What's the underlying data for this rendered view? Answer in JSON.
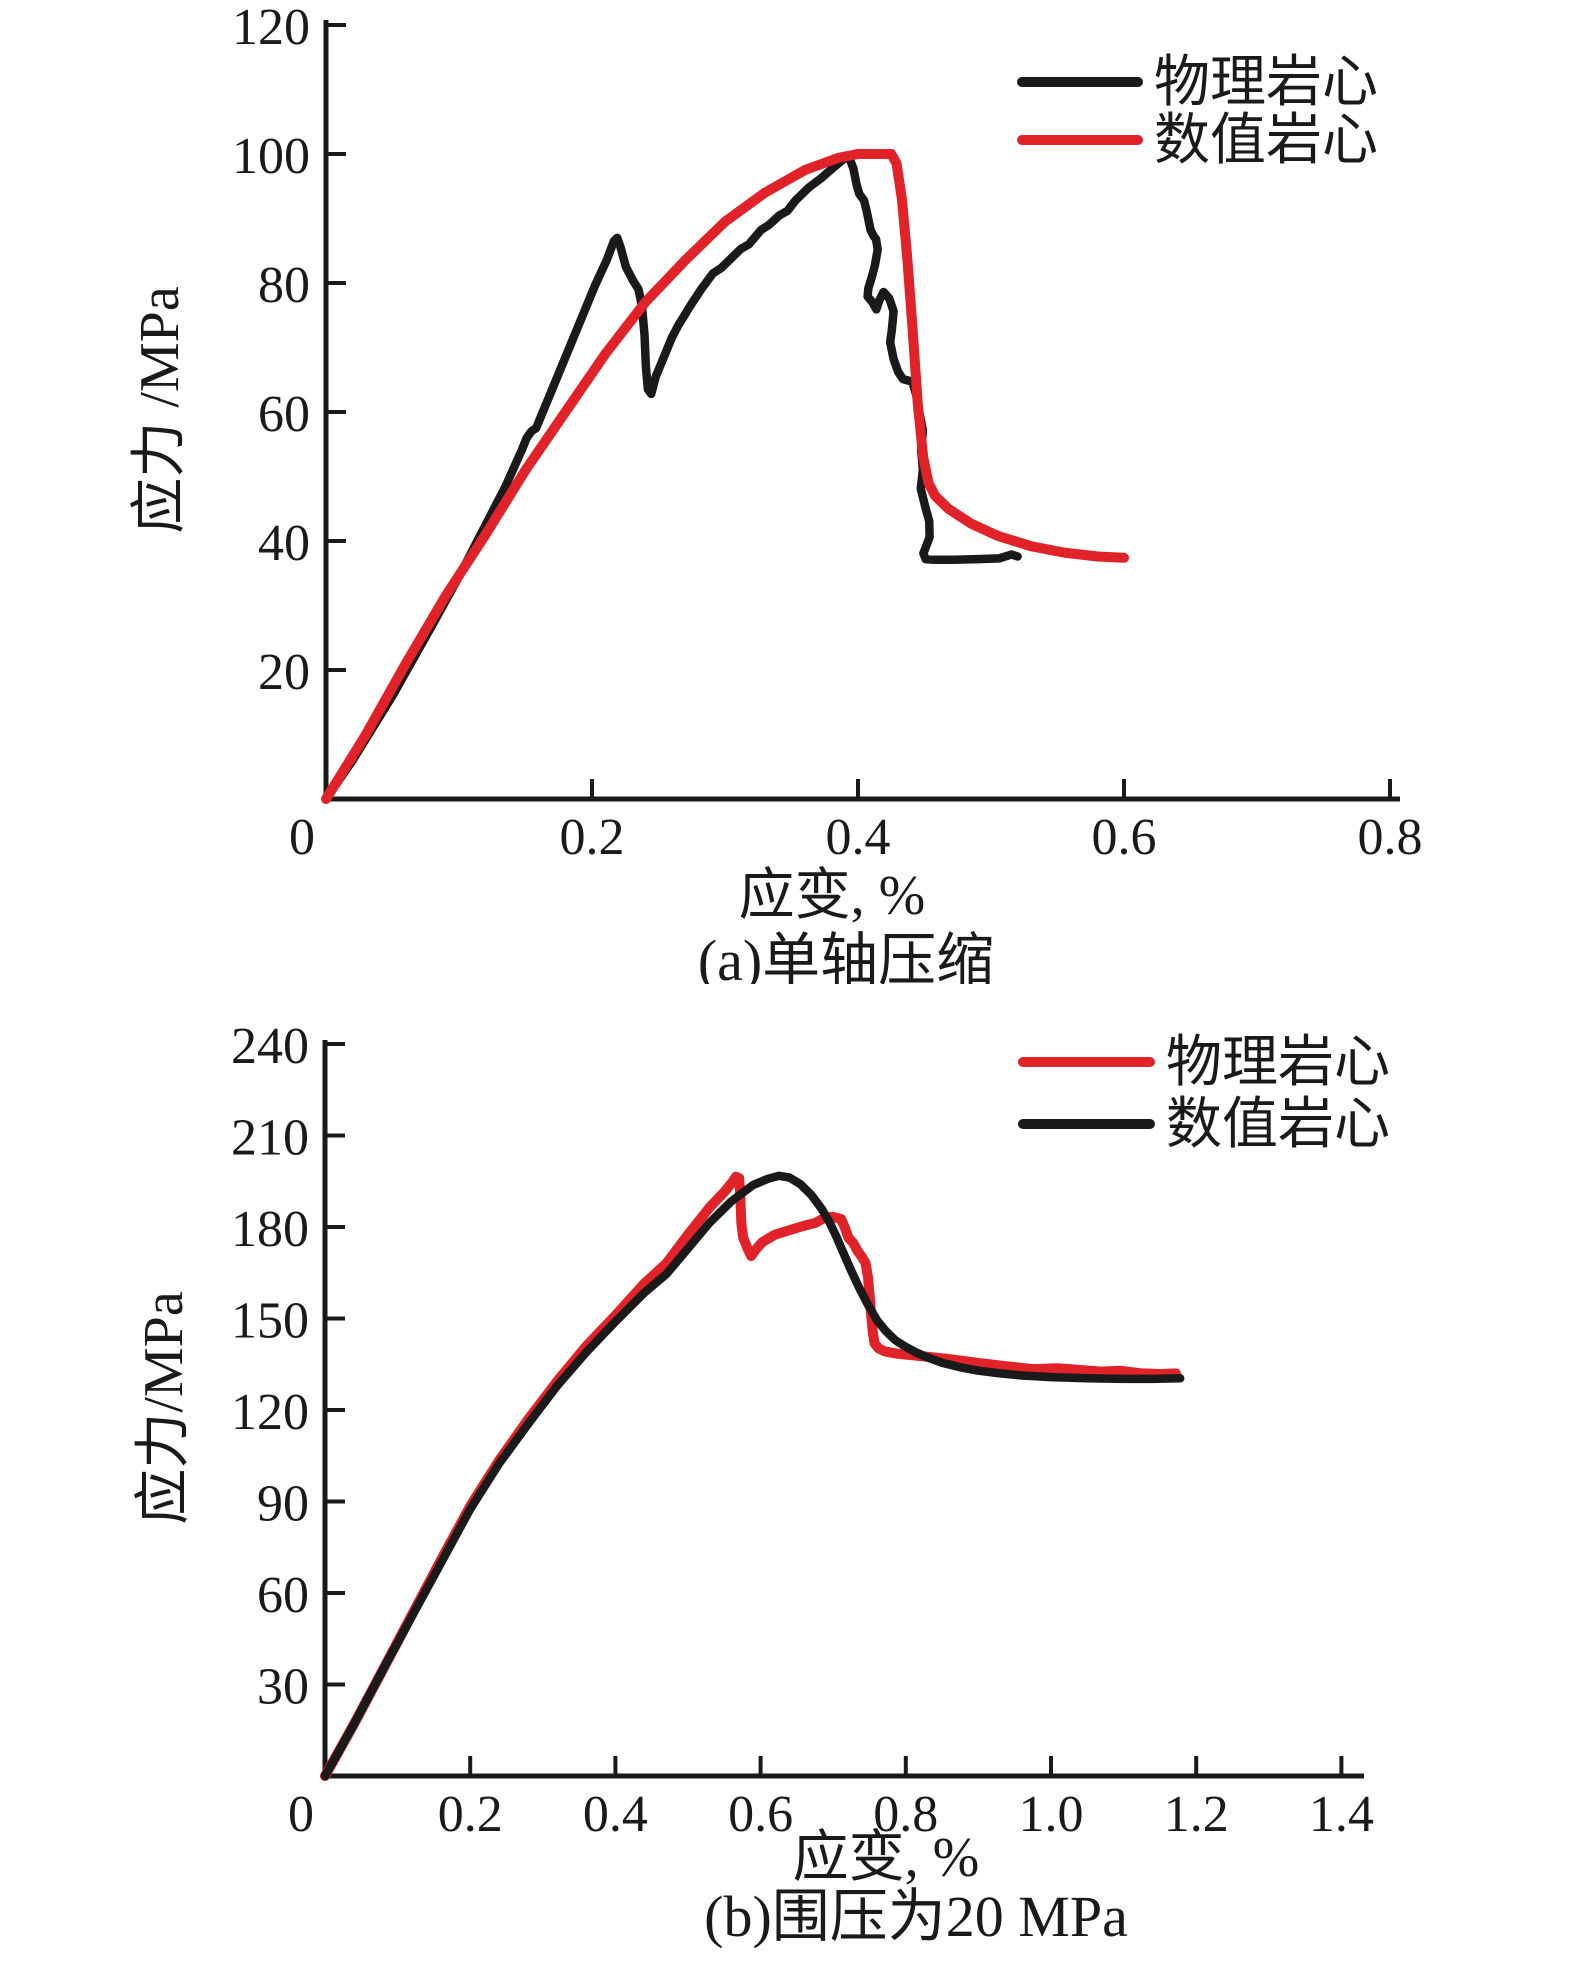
{
  "figure": {
    "background": "#ffffff",
    "accent_red": "#e12228",
    "curve_black": "#1a1a1a"
  },
  "chart_data": [
    {
      "type": "line",
      "panel": "a",
      "caption": "(a)单轴压缩",
      "xlabel": "应变, %",
      "ylabel": "应力 /MPa",
      "xlim": [
        0,
        0.8
      ],
      "ylim": [
        0,
        120
      ],
      "grid": false,
      "legend_position": "top-right",
      "x_ticks": [
        {
          "v": 0,
          "label": "0"
        },
        {
          "v": 0.2,
          "label": "0.2"
        },
        {
          "v": 0.4,
          "label": "0.4"
        },
        {
          "v": 0.6,
          "label": "0.6"
        },
        {
          "v": 0.8,
          "label": "0.8"
        }
      ],
      "y_ticks": [
        {
          "v": 20,
          "label": "20"
        },
        {
          "v": 40,
          "label": "40"
        },
        {
          "v": 60,
          "label": "60"
        },
        {
          "v": 80,
          "label": "80"
        },
        {
          "v": 100,
          "label": "100"
        },
        {
          "v": 120,
          "label": "120"
        }
      ],
      "legend": [
        {
          "label": "物理岩心",
          "color": "#1a1a1a"
        },
        {
          "label": "数值岩心",
          "color": "#e12228"
        }
      ],
      "series": [
        {
          "name": "物理岩心",
          "color": "#1a1a1a",
          "width": 8.5,
          "points": [
            [
              0,
              0
            ],
            [
              0.02,
              6
            ],
            [
              0.05,
              16
            ],
            [
              0.08,
              27
            ],
            [
              0.1,
              34.5
            ],
            [
              0.12,
              42.5
            ],
            [
              0.135,
              48.5
            ],
            [
              0.147,
              54
            ],
            [
              0.151,
              56
            ],
            [
              0.1545,
              57
            ],
            [
              0.158,
              57.5
            ],
            [
              0.163,
              60
            ],
            [
              0.172,
              64.5
            ],
            [
              0.182,
              69.5
            ],
            [
              0.192,
              74.5
            ],
            [
              0.202,
              79.5
            ],
            [
              0.211,
              83.5
            ],
            [
              0.2165,
              86.5
            ],
            [
              0.219,
              87
            ],
            [
              0.2215,
              85.5
            ],
            [
              0.2255,
              82.5
            ],
            [
              0.2305,
              80.5
            ],
            [
              0.235,
              79
            ],
            [
              0.2375,
              76.5
            ],
            [
              0.2395,
              72
            ],
            [
              0.2405,
              67
            ],
            [
              0.242,
              63.5
            ],
            [
              0.2445,
              62.8
            ],
            [
              0.248,
              65.5
            ],
            [
              0.254,
              68.5
            ],
            [
              0.26,
              71.5
            ],
            [
              0.265,
              73.5
            ],
            [
              0.269,
              74.8
            ],
            [
              0.274,
              76.5
            ],
            [
              0.282,
              79
            ],
            [
              0.291,
              81.5
            ],
            [
              0.297,
              82.3
            ],
            [
              0.303,
              83.5
            ],
            [
              0.312,
              85.3
            ],
            [
              0.318,
              86
            ],
            [
              0.327,
              88.2
            ],
            [
              0.333,
              89
            ],
            [
              0.341,
              90.5
            ],
            [
              0.347,
              91.2
            ],
            [
              0.353,
              92.8
            ],
            [
              0.363,
              94.8
            ],
            [
              0.372,
              96.2
            ],
            [
              0.381,
              97.8
            ],
            [
              0.389,
              99.2
            ],
            [
              0.393,
              99.6
            ],
            [
              0.3965,
              97.8
            ],
            [
              0.399,
              95.2
            ],
            [
              0.401,
              93.8
            ],
            [
              0.4045,
              92.8
            ],
            [
              0.4065,
              91.2
            ],
            [
              0.4095,
              88.2
            ],
            [
              0.412,
              87.2
            ],
            [
              0.4135,
              86.8
            ],
            [
              0.4148,
              85.2
            ],
            [
              0.4128,
              82.8
            ],
            [
              0.4102,
              80.8
            ],
            [
              0.4078,
              79.2
            ],
            [
              0.4072,
              77.9
            ],
            [
              0.4105,
              77.1
            ],
            [
              0.4138,
              75.9
            ],
            [
              0.4158,
              77.2
            ],
            [
              0.4192,
              78.6
            ],
            [
              0.4235,
              77.6
            ],
            [
              0.4268,
              75.6
            ],
            [
              0.4255,
              72.8
            ],
            [
              0.4242,
              70.8
            ],
            [
              0.4268,
              68.2
            ],
            [
              0.4302,
              66.2
            ],
            [
              0.4338,
              65.1
            ],
            [
              0.4408,
              64.7
            ],
            [
              0.4438,
              62.6
            ],
            [
              0.4462,
              59.9
            ],
            [
              0.4488,
              57.1
            ],
            [
              0.4475,
              54.1
            ],
            [
              0.4488,
              51.1
            ],
            [
              0.4472,
              48.1
            ],
            [
              0.4508,
              45.1
            ],
            [
              0.4535,
              43.1
            ],
            [
              0.4538,
              40.6
            ],
            [
              0.4492,
              38.1
            ],
            [
              0.4508,
              37.2
            ],
            [
              0.456,
              37.1
            ],
            [
              0.472,
              37.1
            ],
            [
              0.49,
              37.2
            ],
            [
              0.506,
              37.3
            ],
            [
              0.5155,
              37.9
            ],
            [
              0.52,
              37.6
            ]
          ]
        },
        {
          "name": "数值岩心",
          "color": "#e12228",
          "width": 10,
          "points": [
            [
              0,
              0
            ],
            [
              0.03,
              10
            ],
            [
              0.06,
              21
            ],
            [
              0.09,
              31.5
            ],
            [
              0.12,
              41
            ],
            [
              0.15,
              51
            ],
            [
              0.18,
              60
            ],
            [
              0.21,
              69
            ],
            [
              0.24,
              77
            ],
            [
              0.27,
              83.5
            ],
            [
              0.3,
              89.5
            ],
            [
              0.33,
              94
            ],
            [
              0.36,
              97.5
            ],
            [
              0.385,
              99.4
            ],
            [
              0.4,
              100
            ],
            [
              0.425,
              100
            ],
            [
              0.429,
              98.5
            ],
            [
              0.433,
              93
            ],
            [
              0.437,
              84
            ],
            [
              0.441,
              73
            ],
            [
              0.445,
              61
            ],
            [
              0.449,
              53
            ],
            [
              0.453,
              49
            ],
            [
              0.458,
              47
            ],
            [
              0.468,
              45
            ],
            [
              0.485,
              42.7
            ],
            [
              0.505,
              40.8
            ],
            [
              0.53,
              39.2
            ],
            [
              0.555,
              38.2
            ],
            [
              0.58,
              37.6
            ],
            [
              0.6,
              37.4
            ]
          ]
        }
      ]
    },
    {
      "type": "line",
      "panel": "b",
      "caption": "(b)围压为20 MPa",
      "xlabel": "应变, %",
      "ylabel": "应力/MPa",
      "xlim": [
        0,
        1.4
      ],
      "ylim": [
        0,
        240
      ],
      "grid": false,
      "legend_position": "top-right",
      "x_ticks": [
        {
          "v": 0,
          "label": "0"
        },
        {
          "v": 0.2,
          "label": "0.2"
        },
        {
          "v": 0.4,
          "label": "0.4"
        },
        {
          "v": 0.6,
          "label": "0.6"
        },
        {
          "v": 0.8,
          "label": "0.8"
        },
        {
          "v": 1.0,
          "label": "1.0"
        },
        {
          "v": 1.2,
          "label": "1.2"
        },
        {
          "v": 1.4,
          "label": "1.4"
        }
      ],
      "y_ticks": [
        {
          "v": 30,
          "label": "30"
        },
        {
          "v": 60,
          "label": "60"
        },
        {
          "v": 90,
          "label": "90"
        },
        {
          "v": 120,
          "label": "120"
        },
        {
          "v": 150,
          "label": "150"
        },
        {
          "v": 180,
          "label": "180"
        },
        {
          "v": 210,
          "label": "210"
        },
        {
          "v": 240,
          "label": "240"
        }
      ],
      "legend": [
        {
          "label": "物理岩心",
          "color": "#e12228"
        },
        {
          "label": "数值岩心",
          "color": "#1a1a1a"
        }
      ],
      "series": [
        {
          "name": "物理岩心",
          "color": "#e12228",
          "width": 10,
          "points": [
            [
              0,
              0
            ],
            [
              0.04,
              17
            ],
            [
              0.08,
              35
            ],
            [
              0.12,
              53
            ],
            [
              0.16,
              71
            ],
            [
              0.2,
              88.5
            ],
            [
              0.24,
              103.5
            ],
            [
              0.28,
              117
            ],
            [
              0.32,
              129.5
            ],
            [
              0.36,
              141
            ],
            [
              0.4,
              151
            ],
            [
              0.44,
              161.5
            ],
            [
              0.47,
              168
            ],
            [
              0.5,
              177.5
            ],
            [
              0.53,
              186.5
            ],
            [
              0.55,
              191.5
            ],
            [
              0.562,
              195
            ],
            [
              0.566,
              196.5
            ],
            [
              0.5705,
              196
            ],
            [
              0.572,
              190
            ],
            [
              0.5735,
              181
            ],
            [
              0.576,
              176.5
            ],
            [
              0.582,
              173
            ],
            [
              0.587,
              170.5
            ],
            [
              0.593,
              172.5
            ],
            [
              0.602,
              175
            ],
            [
              0.62,
              177.5
            ],
            [
              0.64,
              179
            ],
            [
              0.658,
              180.3
            ],
            [
              0.675,
              181.3
            ],
            [
              0.688,
              183
            ],
            [
              0.7,
              183.3
            ],
            [
              0.711,
              182.6
            ],
            [
              0.7165,
              179.5
            ],
            [
              0.721,
              176.5
            ],
            [
              0.7275,
              174.8
            ],
            [
              0.7335,
              172.2
            ],
            [
              0.7395,
              170.2
            ],
            [
              0.7445,
              168.2
            ],
            [
              0.748,
              163.5
            ],
            [
              0.7505,
              156.5
            ],
            [
              0.7525,
              150.5
            ],
            [
              0.7545,
              145.5
            ],
            [
              0.757,
              141.8
            ],
            [
              0.7625,
              140.2
            ],
            [
              0.771,
              139.2
            ],
            [
              0.79,
              138.4
            ],
            [
              0.82,
              137.7
            ],
            [
              0.86,
              136.7
            ],
            [
              0.9,
              135.4
            ],
            [
              0.94,
              134.3
            ],
            [
              0.975,
              133.4
            ],
            [
              1.01,
              133.7
            ],
            [
              1.04,
              133.1
            ],
            [
              1.07,
              132.6
            ],
            [
              1.095,
              132.9
            ],
            [
              1.125,
              132
            ],
            [
              1.15,
              131.8
            ],
            [
              1.172,
              132
            ]
          ]
        },
        {
          "name": "数值岩心",
          "color": "#1a1a1a",
          "width": 8.5,
          "points": [
            [
              0,
              0
            ],
            [
              0.04,
              17
            ],
            [
              0.08,
              35
            ],
            [
              0.12,
              52.5
            ],
            [
              0.16,
              70
            ],
            [
              0.2,
              87.5
            ],
            [
              0.24,
              102.5
            ],
            [
              0.28,
              115.5
            ],
            [
              0.32,
              128
            ],
            [
              0.36,
              139
            ],
            [
              0.4,
              149
            ],
            [
              0.44,
              158.5
            ],
            [
              0.47,
              164.5
            ],
            [
              0.5,
              173
            ],
            [
              0.53,
              181.5
            ],
            [
              0.56,
              188.5
            ],
            [
              0.59,
              193.8
            ],
            [
              0.61,
              195.8
            ],
            [
              0.625,
              196.8
            ],
            [
              0.64,
              196.2
            ],
            [
              0.655,
              194
            ],
            [
              0.67,
              190.5
            ],
            [
              0.684,
              186
            ],
            [
              0.695,
              181.5
            ],
            [
              0.704,
              177
            ],
            [
              0.715,
              171
            ],
            [
              0.725,
              165.5
            ],
            [
              0.736,
              160
            ],
            [
              0.748,
              154.5
            ],
            [
              0.76,
              149.5
            ],
            [
              0.772,
              146
            ],
            [
              0.785,
              143
            ],
            [
              0.8,
              140.7
            ],
            [
              0.815,
              138.8
            ],
            [
              0.83,
              137.2
            ],
            [
              0.85,
              135.5
            ],
            [
              0.875,
              134
            ],
            [
              0.9,
              132.9
            ],
            [
              0.93,
              132
            ],
            [
              0.96,
              131.3
            ],
            [
              1.0,
              130.8
            ],
            [
              1.05,
              130.4
            ],
            [
              1.1,
              130.2
            ],
            [
              1.14,
              130.2
            ],
            [
              1.178,
              130.4
            ]
          ]
        }
      ]
    }
  ]
}
